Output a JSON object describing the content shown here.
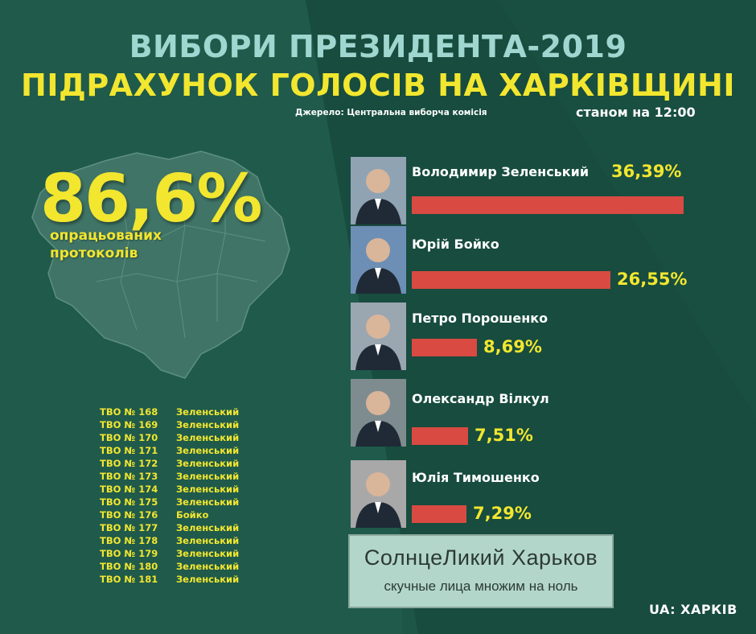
{
  "header": {
    "title_line1": "ВИБОРИ ПРЕЗИДЕНТА-2019",
    "title_line2": "ПІДРАХУНОК ГОЛОСІВ НА ХАРКІВЩИНІ",
    "source": "Джерело: Центральна виборча комісія",
    "as_of": "станом на 12:00"
  },
  "protocols": {
    "value": "86,6%",
    "label_line1": "опрацьованих",
    "label_line2": "протоколів"
  },
  "districts": [
    {
      "tvo": "ТВО № 168",
      "leader": "Зеленський"
    },
    {
      "tvo": "ТВО № 169",
      "leader": "Зеленський"
    },
    {
      "tvo": "ТВО № 170",
      "leader": "Зеленський"
    },
    {
      "tvo": "ТВО № 171",
      "leader": "Зеленський"
    },
    {
      "tvo": "ТВО № 172",
      "leader": "Зеленський"
    },
    {
      "tvo": "ТВО № 173",
      "leader": "Зеленський"
    },
    {
      "tvo": "ТВО № 174",
      "leader": "Зеленський"
    },
    {
      "tvo": "ТВО № 175",
      "leader": "Зеленський"
    },
    {
      "tvo": "ТВО № 176",
      "leader": "Бойко"
    },
    {
      "tvo": "ТВО № 177",
      "leader": "Зеленський"
    },
    {
      "tvo": "ТВО № 178",
      "leader": "Зеленський"
    },
    {
      "tvo": "ТВО № 179",
      "leader": "Зеленський"
    },
    {
      "tvo": "ТВО № 180",
      "leader": "Зеленський"
    },
    {
      "tvo": "ТВО № 181",
      "leader": "Зеленський"
    }
  ],
  "chart_data": {
    "type": "bar",
    "categories": [
      "Володимир Зеленський",
      "Юрій Бойко",
      "Петро Порошенко",
      "Олександр Вілкул",
      "Юлія Тимошенко"
    ],
    "values": [
      36.39,
      26.55,
      8.69,
      7.51,
      7.29
    ],
    "value_labels": [
      "36,39%",
      "26,55%",
      "8,69%",
      "7,51%",
      "7,29%"
    ],
    "bar_color": "#d84a42",
    "label_color": "#f2e62f"
  },
  "ad": {
    "title": "СолнцеЛикий Харьков",
    "subtitle": "скучные лица множим на ноль"
  },
  "logo": {
    "prefix": "UA:",
    "name": "ХАРКІВ"
  }
}
